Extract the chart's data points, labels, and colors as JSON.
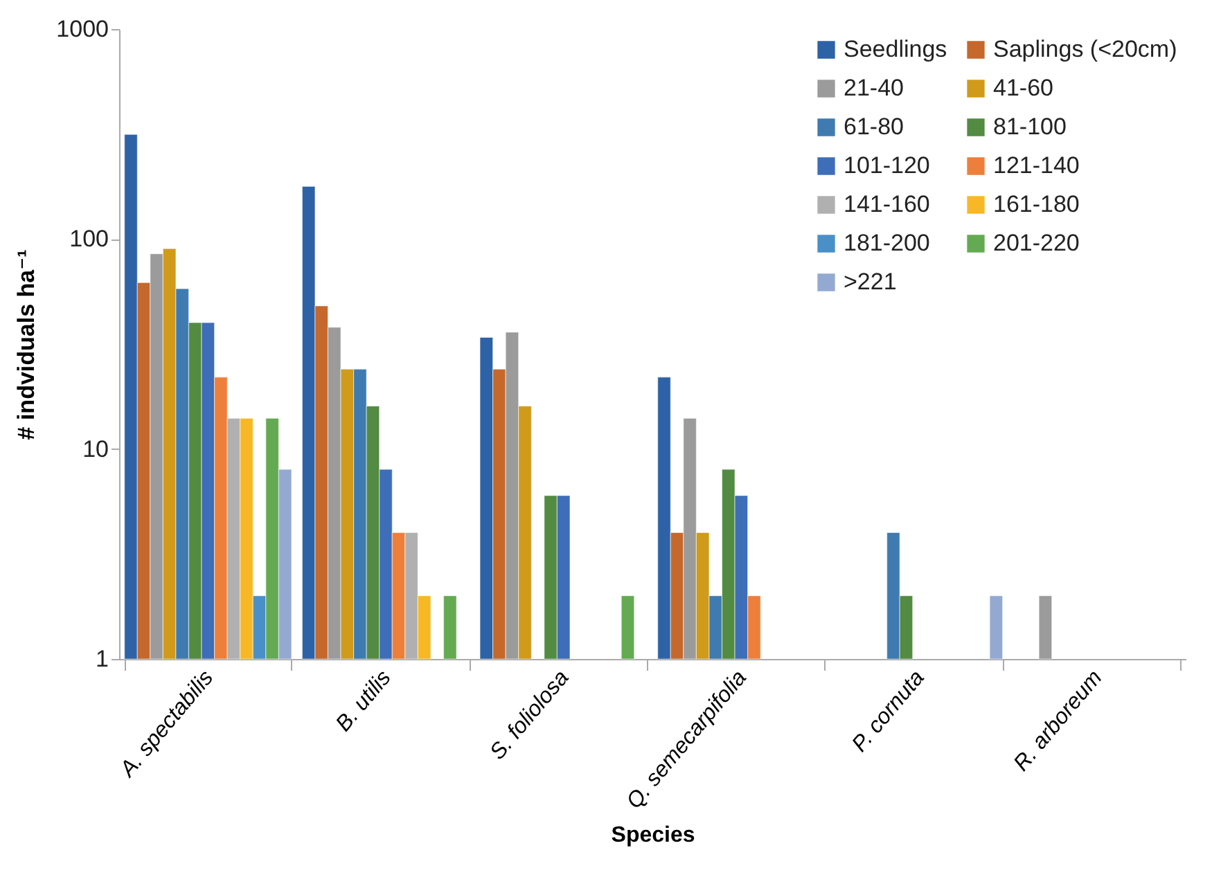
{
  "chart_data": {
    "type": "bar",
    "xlabel": "Species",
    "ylabel": "# indviduals ha⁻¹",
    "log": "y",
    "legend": "top right",
    "categories": [
      "A. spectabilis",
      "B. utilis",
      "S. foliolosa",
      "Q. semecarpifolia",
      "P. cornuta",
      "R. arboreum"
    ],
    "ylim": [
      1,
      1000
    ],
    "yticks": [
      1,
      10,
      100,
      1000
    ],
    "series": [
      {
        "name": "Seedlings",
        "color": "#2e62a6",
        "values": [
          315,
          178,
          34,
          22,
          null,
          null
        ]
      },
      {
        "name": "Saplings (<20cm)",
        "color": "#c5682c",
        "values": [
          62,
          48,
          24,
          4,
          null,
          null
        ]
      },
      {
        "name": "21-40",
        "color": "#9b9b9b",
        "values": [
          85,
          38,
          36,
          14,
          null,
          2
        ]
      },
      {
        "name": "41-60",
        "color": "#d09a1a",
        "values": [
          90,
          24,
          16,
          4,
          null,
          null
        ]
      },
      {
        "name": "61-80",
        "color": "#3f7bb0",
        "values": [
          58,
          24,
          null,
          2,
          4,
          null
        ]
      },
      {
        "name": "81-100",
        "color": "#528b41",
        "values": [
          40,
          16,
          6,
          8,
          2,
          null
        ]
      },
      {
        "name": "101-120",
        "color": "#3e6eb8",
        "values": [
          40,
          8,
          6,
          6,
          null,
          null
        ]
      },
      {
        "name": "121-140",
        "color": "#ed7f3b",
        "values": [
          22,
          4,
          null,
          2,
          null,
          null
        ]
      },
      {
        "name": "141-160",
        "color": "#b0b0b0",
        "values": [
          14,
          4,
          null,
          null,
          null,
          null
        ]
      },
      {
        "name": "161-180",
        "color": "#f8b826",
        "values": [
          14,
          2,
          null,
          null,
          null,
          null
        ]
      },
      {
        "name": "181-200",
        "color": "#4a90c8",
        "values": [
          2,
          null,
          null,
          null,
          null,
          null
        ]
      },
      {
        "name": "201-220",
        "color": "#64aa52",
        "values": [
          14,
          2,
          2,
          null,
          null,
          null
        ]
      },
      {
        "name": ">221",
        "color": "#94a9d2",
        "values": [
          8,
          null,
          null,
          null,
          2,
          null
        ]
      }
    ]
  }
}
